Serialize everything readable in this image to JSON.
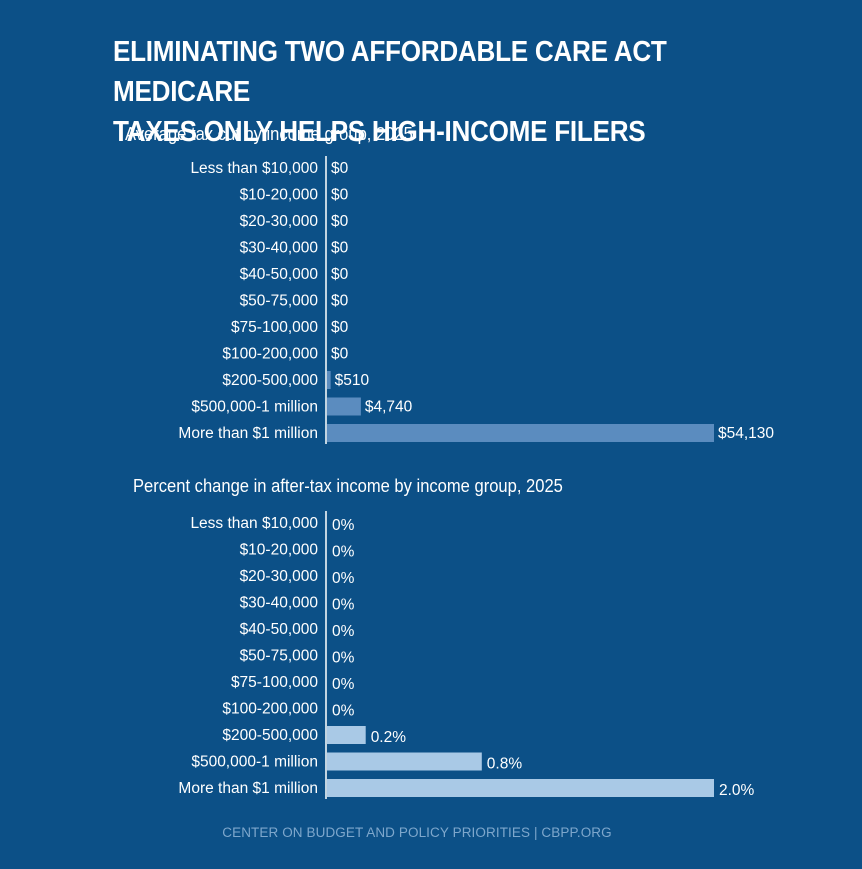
{
  "title": {
    "line1": "Eliminating Two Affordable Care Act Medicare",
    "line2": "Taxes Only Helps High-Income Filers"
  },
  "colors": {
    "background": "#0c5087",
    "bar_tax_cut": "#5b8cbf",
    "bar_percent": "#a9c9e6",
    "footer": "#7ea7cc"
  },
  "footer": {
    "text": "CENTER ON BUDGET AND POLICY PRIORITIES | CBPP.ORG"
  },
  "chart_data": [
    {
      "type": "bar",
      "orientation": "horizontal",
      "title": "Average tax cut by income group, 2025",
      "categories": [
        "Less than $10,000",
        "$10-20,000",
        "$20-30,000",
        "$30-40,000",
        "$40-50,000",
        "$50-75,000",
        "$75-100,000",
        "$100-200,000",
        "$200-500,000",
        "$500,000-1 million",
        "More than $1 million"
      ],
      "values": [
        0,
        0,
        0,
        0,
        0,
        0,
        0,
        0,
        510,
        4740,
        54130
      ],
      "labels": [
        "$0",
        "$0",
        "$0",
        "$0",
        "$0",
        "$0",
        "$0",
        "$0",
        "$510",
        "$4,740",
        "$54,130"
      ],
      "xlim": [
        0,
        54130
      ],
      "xlabel": "",
      "ylabel": ""
    },
    {
      "type": "bar",
      "orientation": "horizontal",
      "title": "Percent change in after-tax income by income group, 2025",
      "categories": [
        "Less than $10,000",
        "$10-20,000",
        "$20-30,000",
        "$30-40,000",
        "$40-50,000",
        "$50-75,000",
        "$75-100,000",
        "$100-200,000",
        "$200-500,000",
        "$500,000-1 million",
        "More than $1 million"
      ],
      "values": [
        0,
        0,
        0,
        0,
        0,
        0,
        0,
        0,
        0.2,
        0.8,
        2.0
      ],
      "labels": [
        "0%",
        "0%",
        "0%",
        "0%",
        "0%",
        "0%",
        "0%",
        "0%",
        "0.2%",
        "0.8%",
        "2.0%"
      ],
      "xlim": [
        0,
        2.0
      ],
      "xlabel": "",
      "ylabel": ""
    }
  ]
}
